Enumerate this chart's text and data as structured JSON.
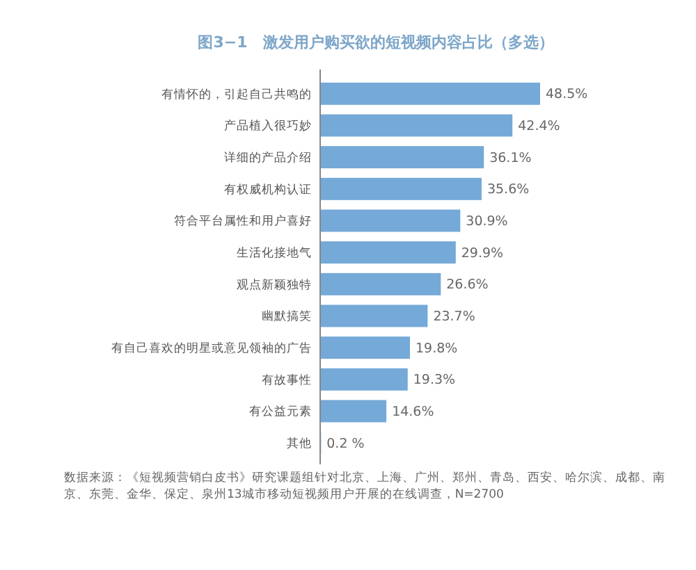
{
  "chart_data": {
    "type": "bar",
    "orientation": "horizontal",
    "title": "图3−1　激发用户购买欲的短视频内容占比（多选）",
    "categories": [
      "有情怀的，引起自己共鸣的",
      "产品植入很巧妙",
      "详细的产品介绍",
      "有权威机构认证",
      "符合平台属性和用户喜好",
      "生活化接地气",
      "观点新颖独特",
      "幽默搞笑",
      "有自己喜欢的明星或意见领袖的广告",
      "有故事性",
      "有公益元素",
      "其他"
    ],
    "values": [
      48.5,
      42.4,
      36.1,
      35.6,
      30.9,
      29.9,
      26.6,
      23.7,
      19.8,
      19.3,
      14.6,
      0.2
    ],
    "value_labels": [
      "48.5%",
      "42.4%",
      "36.1%",
      "35.6%",
      "30.9%",
      "29.9%",
      "26.6%",
      "23.7%",
      "19.8%",
      "19.3%",
      "14.6%",
      "0.2 %"
    ],
    "color": "#74a9d8",
    "annotations": [
      "数据来源：《短视频营销白皮书》研究课题组针对北京、上海、广州、郑州、青岛、西安、哈尔滨、成都、南京、东莞、金华、保定、泉州13城市移动短视频用户开展的在线调查，N=2700"
    ]
  }
}
